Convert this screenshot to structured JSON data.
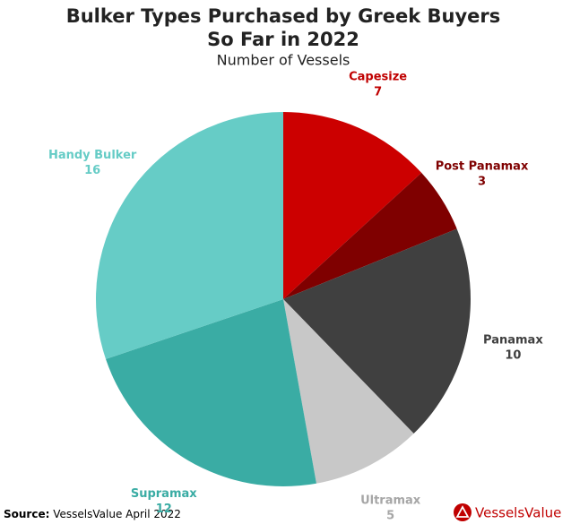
{
  "chart_data": {
    "type": "pie",
    "title": [
      "Bulker Types Purchased by Greek Buyers",
      "So Far in 2022"
    ],
    "subtitle": "Number of Vessels",
    "categories": [
      "Capesize",
      "Post Panamax",
      "Panamax",
      "Ultramax",
      "Supramax",
      "Handy Bulker"
    ],
    "values": [
      7,
      3,
      10,
      5,
      12,
      16
    ],
    "colors": [
      "#cc0000",
      "#7f0000",
      "#404040",
      "#c8c8c8",
      "#3aaca4",
      "#66ccc6"
    ],
    "label_colors": [
      "#c00000",
      "#7f0000",
      "#404040",
      "#a6a6a6",
      "#3aaca4",
      "#66ccc6"
    ],
    "source_label": "Source:",
    "source": "VesselsValue April 2022",
    "logo": "VesselsValue"
  }
}
